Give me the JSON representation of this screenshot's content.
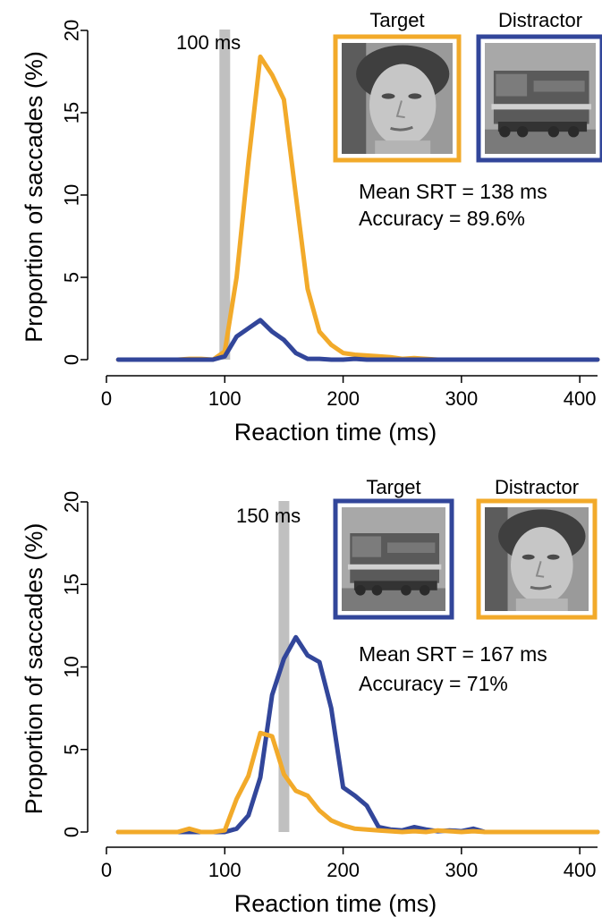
{
  "colors": {
    "face": "#f2aa2a",
    "train": "#32469a",
    "window": "#c0c0c0"
  },
  "chart_data": [
    {
      "type": "line",
      "xlabel": "Reaction time (ms)",
      "ylabel": "Proportion of saccades (%)",
      "xlim": [
        0,
        415
      ],
      "ylim": [
        0,
        20
      ],
      "xticks": [
        0,
        100,
        200,
        300,
        400
      ],
      "yticks": [
        0,
        5,
        10,
        15,
        20
      ],
      "grid": false,
      "min_saccade_time": {
        "value": 100,
        "label": "100 ms"
      },
      "stats": {
        "mean_srt": "Mean SRT = 138 ms",
        "accuracy": "Accuracy = 89.6%"
      },
      "images": {
        "target_label": "Target",
        "distractor_label": "Distractor",
        "target": "face",
        "distractor": "train"
      },
      "series": [
        {
          "role": "target",
          "color": "#f2aa2a",
          "x": [
            10,
            20,
            30,
            40,
            50,
            60,
            70,
            80,
            90,
            100,
            110,
            120,
            130,
            140,
            150,
            160,
            170,
            180,
            190,
            200,
            210,
            220,
            230,
            240,
            250,
            260,
            270,
            280,
            290,
            300,
            310,
            320,
            330,
            340,
            350,
            360,
            370,
            380,
            390,
            400,
            410,
            415
          ],
          "y": [
            0,
            0,
            0,
            0,
            0,
            0,
            0.05,
            0.05,
            0,
            0.5,
            5,
            12,
            18.4,
            17.3,
            15.8,
            10,
            4.3,
            1.7,
            0.9,
            0.4,
            0.3,
            0.25,
            0.2,
            0.15,
            0.05,
            0.1,
            0.05,
            0,
            0,
            0,
            0,
            0,
            0,
            0,
            0,
            0,
            0,
            0,
            0,
            0,
            0,
            0
          ]
        },
        {
          "role": "distractor",
          "color": "#32469a",
          "x": [
            10,
            20,
            30,
            40,
            50,
            60,
            70,
            80,
            90,
            100,
            110,
            120,
            130,
            140,
            150,
            160,
            170,
            180,
            190,
            200,
            210,
            220,
            230,
            240,
            250,
            260,
            270,
            280,
            290,
            300,
            310,
            320,
            330,
            340,
            350,
            360,
            370,
            380,
            390,
            400,
            410,
            415
          ],
          "y": [
            0,
            0,
            0,
            0,
            0,
            0,
            0,
            0,
            0,
            0.2,
            1.4,
            1.9,
            2.4,
            1.7,
            1.2,
            0.4,
            0.05,
            0.05,
            0,
            0,
            0.05,
            0,
            0,
            0,
            0,
            0,
            0,
            0,
            0,
            0,
            0,
            0,
            0,
            0,
            0,
            0,
            0,
            0,
            0,
            0,
            0,
            0
          ]
        }
      ]
    },
    {
      "type": "line",
      "xlabel": "Reaction time (ms)",
      "ylabel": "Proportion of saccades (%)",
      "xlim": [
        0,
        415
      ],
      "ylim": [
        0,
        20
      ],
      "xticks": [
        0,
        100,
        200,
        300,
        400
      ],
      "yticks": [
        0,
        5,
        10,
        15,
        20
      ],
      "grid": false,
      "min_saccade_time": {
        "value": 150,
        "label": "150 ms"
      },
      "stats": {
        "mean_srt": "Mean SRT = 167 ms",
        "accuracy": "Accuracy = 71%"
      },
      "images": {
        "target_label": "Target",
        "distractor_label": "Distractor",
        "target": "train",
        "distractor": "face"
      },
      "series": [
        {
          "role": "target",
          "color": "#32469a",
          "x": [
            10,
            20,
            30,
            40,
            50,
            60,
            70,
            80,
            90,
            100,
            110,
            120,
            130,
            140,
            150,
            160,
            170,
            180,
            190,
            200,
            210,
            220,
            230,
            240,
            250,
            260,
            270,
            280,
            290,
            300,
            310,
            320,
            330,
            340,
            350,
            360,
            370,
            380,
            390,
            400,
            410,
            415
          ],
          "y": [
            0,
            0,
            0,
            0,
            0,
            0,
            0,
            0,
            0,
            0,
            0.2,
            1,
            3.3,
            8.3,
            10.5,
            11.8,
            10.7,
            10.3,
            7.5,
            2.7,
            2.2,
            1.6,
            0.3,
            0.15,
            0.1,
            0.3,
            0.15,
            0.05,
            0.1,
            0.05,
            0.2,
            0,
            0,
            0,
            0,
            0,
            0,
            0,
            0,
            0,
            0,
            0
          ]
        },
        {
          "role": "distractor",
          "color": "#f2aa2a",
          "x": [
            10,
            20,
            30,
            40,
            50,
            60,
            70,
            80,
            90,
            100,
            110,
            120,
            130,
            140,
            150,
            160,
            170,
            180,
            190,
            200,
            210,
            220,
            230,
            240,
            250,
            260,
            270,
            280,
            290,
            300,
            310,
            320,
            330,
            340,
            350,
            360,
            370,
            380,
            390,
            400,
            410,
            415
          ],
          "y": [
            0,
            0,
            0,
            0,
            0,
            0,
            0.2,
            0,
            0,
            0.1,
            2,
            3.4,
            6,
            5.8,
            3.5,
            2.5,
            2.2,
            1.3,
            0.7,
            0.4,
            0.2,
            0.15,
            0.1,
            0.05,
            0,
            0.05,
            0,
            0.1,
            0.05,
            0,
            0.05,
            0,
            0,
            0,
            0,
            0,
            0,
            0,
            0,
            0,
            0,
            0
          ]
        }
      ]
    }
  ]
}
